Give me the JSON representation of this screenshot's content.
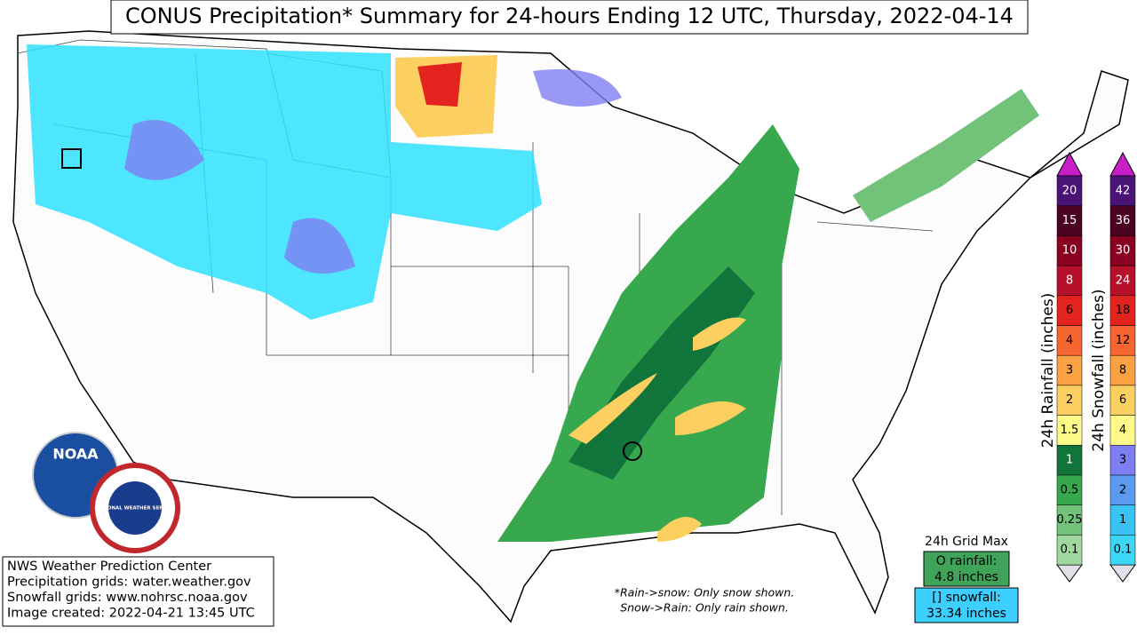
{
  "title": "CONUS Precipitation* Summary for 24-hours Ending 12 UTC, Thursday, 2022-04-14",
  "credits": [
    "NWS Weather Prediction Center",
    "Precipitation grids: water.weather.gov",
    "Snowfall grids: www.nohrsc.noaa.gov",
    "Image created: 2022-04-21 13:45 UTC"
  ],
  "note": [
    "*Rain->snow: Only snow shown.",
    "Snow->Rain: Only rain shown."
  ],
  "grid_max": {
    "title": "24h Grid Max",
    "rainfall": [
      "O rainfall:",
      "4.8 inches"
    ],
    "snowfall": [
      "[] snowfall:",
      "33.34 inches"
    ]
  },
  "logos": [
    "NOAA",
    "NATIONAL WEATHER SERVICE"
  ],
  "rain_legend": {
    "label": "24h Rainfall (inches)",
    "levels": [
      {
        "label": "0.1",
        "color": "#a0d9a0"
      },
      {
        "label": "0.25",
        "color": "#73c27a"
      },
      {
        "label": "0.5",
        "color": "#38a84e"
      },
      {
        "label": "1",
        "color": "#11753b"
      },
      {
        "label": "1.5",
        "color": "#fffb8a"
      },
      {
        "label": "2",
        "color": "#fcd060"
      },
      {
        "label": "3",
        "color": "#fba143"
      },
      {
        "label": "4",
        "color": "#f76530"
      },
      {
        "label": "6",
        "color": "#e3231e"
      },
      {
        "label": "8",
        "color": "#b6102a"
      },
      {
        "label": "10",
        "color": "#8a0020"
      },
      {
        "label": "15",
        "color": "#4c0322"
      },
      {
        "label": "20",
        "color": "#4a1476"
      }
    ]
  },
  "snow_legend": {
    "label": "24h Snowfall (inches)",
    "levels": [
      {
        "label": "0.1",
        "color": "#3cd7f7"
      },
      {
        "label": "1",
        "color": "#39c3f4"
      },
      {
        "label": "2",
        "color": "#5b9af0"
      },
      {
        "label": "3",
        "color": "#7f7ef2"
      },
      {
        "label": "4",
        "color": "#fff98a"
      },
      {
        "label": "6",
        "color": "#fcd060"
      },
      {
        "label": "8",
        "color": "#fba143"
      },
      {
        "label": "12",
        "color": "#f76530"
      },
      {
        "label": "18",
        "color": "#e3231e"
      },
      {
        "label": "24",
        "color": "#b6102a"
      },
      {
        "label": "30",
        "color": "#8a0020"
      },
      {
        "label": "36",
        "color": "#4c0322"
      },
      {
        "label": "42",
        "color": "#4a1476"
      }
    ]
  }
}
